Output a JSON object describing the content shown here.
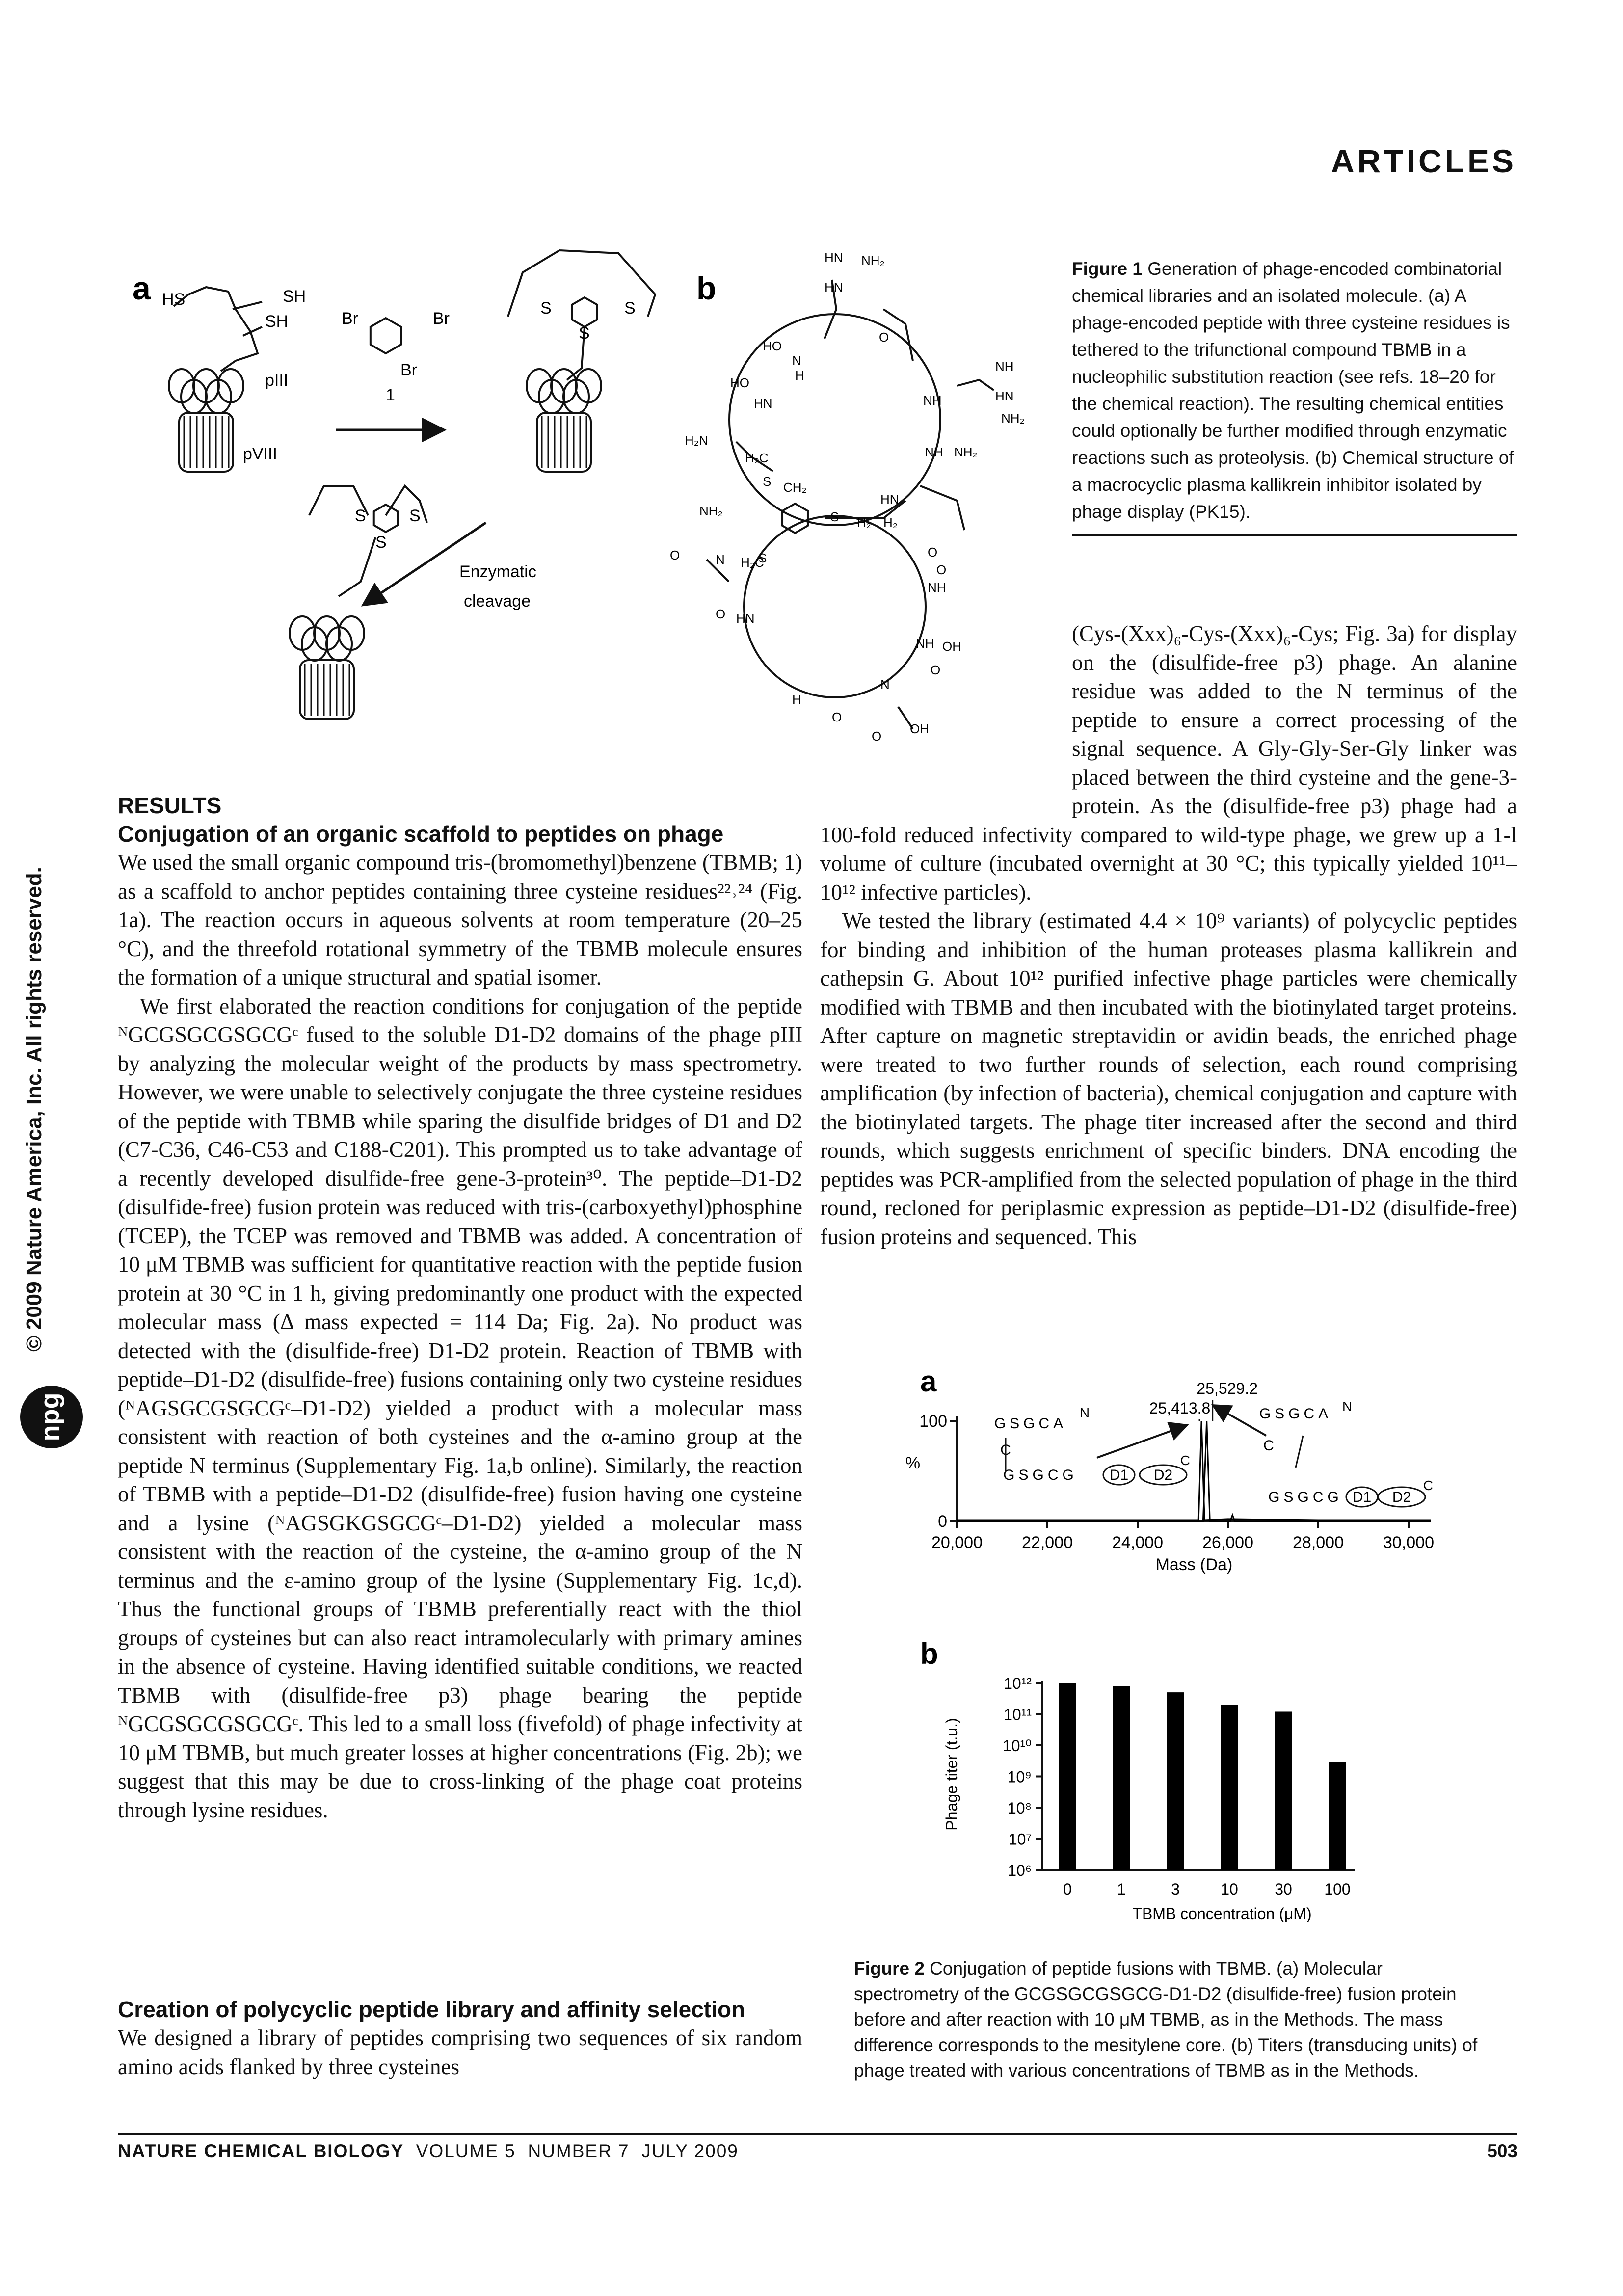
{
  "header": {
    "section": "ARTICLES"
  },
  "sidebar": {
    "copyright": "© 2009 Nature America, Inc. All rights reserved.",
    "logo": "npg"
  },
  "figure1": {
    "panel_a": {
      "label": "a",
      "labels": [
        "HS",
        "SH",
        "SH",
        "pIII",
        "pVIII",
        "Br",
        "Br",
        "Br",
        "1",
        "S",
        "S",
        "S",
        "S",
        "S",
        "S",
        "Enzymatic",
        "cleavage"
      ]
    },
    "panel_b": {
      "label": "b",
      "atoms": [
        "HN",
        "NH₂",
        "HN",
        "HO",
        "O",
        "N",
        "H",
        "NH",
        "HO",
        "HN",
        "NH",
        "HN",
        "NH₂",
        "H₂N",
        "NH",
        "NH₂",
        "H₂C",
        "CH₂",
        "S",
        "S",
        "H₂",
        "H₂",
        "HN",
        "S",
        "NH₂",
        "O",
        "N",
        "H₂C",
        "O",
        "O",
        "NH",
        "O",
        "HN",
        "NH",
        "OH",
        "O",
        "H",
        "N",
        "O",
        "OH",
        "O"
      ]
    },
    "caption": {
      "title": "Figure 1",
      "text": "Generation of phage-encoded combinatorial chemical libraries and an isolated molecule. (a) A phage-encoded peptide with three cysteine residues is tethered to the trifunctional compound TBMB in a nucleophilic substitution reaction (see refs. 18–20 for the chemical reaction). The resulting chemical entities could optionally be further modified through enzymatic reactions such as proteolysis. (b) Chemical structure of a macrocyclic plasma kallikrein inhibitor isolated by phage display (PK15)."
    }
  },
  "body": {
    "results_heading": "RESULTS",
    "section1_heading": "Conjugation of an organic scaffold to peptides on phage",
    "paragraphs_left": [
      "We used the small organic compound tris-(bromomethyl)benzene (TBMB; 1) as a scaffold to anchor peptides containing three cysteine residues²²˒²⁴ (Fig. 1a). The reaction occurs in aqueous solvents at room temperature (20–25 °C), and the threefold rotational symmetry of the TBMB molecule ensures the formation of a unique structural and spatial isomer.",
      "We first elaborated the reaction conditions for conjugation of the peptide ᴺGCGSGCGSGCGᶜ fused to the soluble D1-D2 domains of the phage pIII by analyzing the molecular weight of the products by mass spectrometry. However, we were unable to selectively conjugate the three cysteine residues of the peptide with TBMB while sparing the disulfide bridges of D1 and D2 (C7-C36, C46-C53 and C188-C201). This prompted us to take advantage of a recently developed disulfide-free gene-3-protein³⁰. The peptide–D1-D2 (disulfide-free) fusion protein was reduced with tris-(carboxyethyl)phosphine (TCEP), the TCEP was removed and TBMB was added. A concentration of 10 μM TBMB was sufficient for quantitative reaction with the peptide fusion protein at 30 °C in 1 h, giving predominantly one product with the expected molecular mass (Δ mass expected = 114 Da; Fig. 2a). No product was detected with the (disulfide-free) D1-D2 protein. Reaction of TBMB with peptide–D1-D2 (disulfide-free) fusions containing only two cysteine residues (ᴺAGSGCGSGCGᶜ–D1-D2) yielded a product with a molecular mass consistent with reaction of both cysteines and the α-amino group at the peptide N terminus (Supplementary Fig. 1a,b online). Similarly, the reaction of TBMB with a peptide–D1-D2 (disulfide-free) fusion having one cysteine and a lysine (ᴺAGSGKGSGCGᶜ–D1-D2) yielded a molecular mass consistent with the reaction of the cysteine, the α-amino group of the N terminus and the ε-amino group of the lysine (Supplementary Fig. 1c,d). Thus the functional groups of TBMB preferentially react with the thiol groups of cysteines but can also react intramolecularly with primary amines in the absence of cysteine. Having identified suitable conditions, we reacted TBMB with (disulfide-free p3) phage bearing the peptide ᴺGCGSGCGSGCGᶜ. This led to a small loss (fivefold) of phage infectivity at 10 μM TBMB, but much greater losses at higher concentrations (Fig. 2b); we suggest that this may be due to cross-linking of the phage coat proteins through lysine residues."
    ],
    "section2_heading": "Creation of polycyclic peptide library and affinity selection",
    "section2_start": "We designed a library of peptides comprising two sequences of six random amino acids flanked by three cysteines",
    "paragraphs_right": [
      "(Cys-(Xxx)₆-Cys-(Xxx)₆-Cys; Fig. 3a) for display on the (disulfide-free p3) phage. An alanine residue was added to the N terminus of the peptide to ensure a correct processing of the signal sequence. A Gly-Gly-Ser-Gly linker was placed between the third cysteine and the gene-3-protein. As the (disulfide-free p3) phage had a 100-fold reduced infectivity compared to wild-type phage, we grew up a 1-l volume of culture (incubated overnight at 30 °C; this typically yielded 10¹¹–10¹² infective particles).",
      "We tested the library (estimated 4.4 × 10⁹ variants) of polycyclic peptides for binding and inhibition of the human proteases plasma kallikrein and cathepsin G. About 10¹² purified infective phage particles were chemically modified with TBMB and then incubated with the biotinylated target proteins. After capture on magnetic streptavidin or avidin beads, the enriched phage were treated to two further rounds of selection, each round comprising amplification (by infection of bacteria), chemical conjugation and capture with the biotinylated targets. The phage titer increased after the second and third rounds, which suggests enrichment of specific binders. DNA encoding the peptides was PCR-amplified from the selected population of phage in the third round, recloned for periplasmic expression as peptide–D1-D2 (disulfide-free) fusion proteins and sequenced. This"
    ]
  },
  "chart_data": [
    {
      "type": "line",
      "label": "a",
      "xlabel": "Mass (Da)",
      "ylabel": "%",
      "xlim": [
        20000,
        30500
      ],
      "xticks": [
        {
          "value": 20000,
          "label": "20,000"
        },
        {
          "value": 22000,
          "label": "22,000"
        },
        {
          "value": 24000,
          "label": "24,000"
        },
        {
          "value": 26000,
          "label": "26,000"
        },
        {
          "value": 28000,
          "label": "28,000"
        },
        {
          "value": 30000,
          "label": "30,000"
        }
      ],
      "ylim": [
        0,
        105
      ],
      "yticks": [
        0,
        100
      ],
      "series": [
        {
          "color": "#000000",
          "x": [
            20000,
            22000,
            24000,
            25000,
            25350,
            25413.8,
            25480,
            26000,
            28000,
            30500
          ],
          "values": [
            1,
            1,
            1,
            1,
            1,
            100,
            1,
            2,
            1,
            1
          ],
          "peak": 25413.8,
          "peak_label": "25,413.8"
        },
        {
          "color": "#000000",
          "x": [
            20000,
            24000,
            25450,
            25529.2,
            25600,
            26050,
            26100,
            26150,
            30500
          ],
          "values": [
            0,
            0,
            0,
            100,
            0,
            0,
            6,
            0,
            0
          ],
          "peak": 25529.2,
          "peak_label": "25,529.2"
        }
      ],
      "insets": [
        [
          "GSGCA",
          "N",
          "C",
          "GSGCG",
          "D1",
          "D2",
          "C"
        ],
        [
          "GSGCA",
          "N",
          "C",
          "GSGCG",
          "D1",
          "D2",
          "C"
        ]
      ]
    },
    {
      "type": "bar",
      "label": "b",
      "xlabel": "TBMB concentration (μM)",
      "ylabel": "Phage titer (t.u.)",
      "log_scale": true,
      "color": "#000000",
      "categories": [
        "0",
        "1",
        "3",
        "10",
        "30",
        "100"
      ],
      "values": [
        1000000000000,
        800000000000,
        500000000000,
        200000000000,
        120000000000,
        3000000000
      ],
      "ylim": [
        1000000,
        1000000000000
      ],
      "yticks": [
        {
          "value": 1000000,
          "label": "10⁶"
        },
        {
          "value": 10000000,
          "label": "10⁷"
        },
        {
          "value": 100000000,
          "label": "10⁸"
        },
        {
          "value": 1000000000,
          "label": "10⁹"
        },
        {
          "value": 10000000000,
          "label": "10¹⁰"
        },
        {
          "value": 100000000000,
          "label": "10¹¹"
        },
        {
          "value": 1000000000000,
          "label": "10¹²"
        }
      ]
    }
  ],
  "figure2": {
    "caption": {
      "title": "Figure 2",
      "text": "Conjugation of peptide fusions with TBMB. (a) Molecular spectrometry of the GCGSGCGSGCG-D1-D2 (disulfide-free) fusion protein before and after reaction with 10 μM TBMB, as in the Methods. The mass difference corresponds to the mesitylene core. (b) Titers (transducing units) of phage treated with various concentrations of TBMB as in the Methods."
    }
  },
  "footer": {
    "journal": "NATURE CHEMICAL BIOLOGY",
    "volume": "VOLUME 5",
    "number": "NUMBER 7",
    "date": "JULY 2009",
    "page": "503"
  }
}
